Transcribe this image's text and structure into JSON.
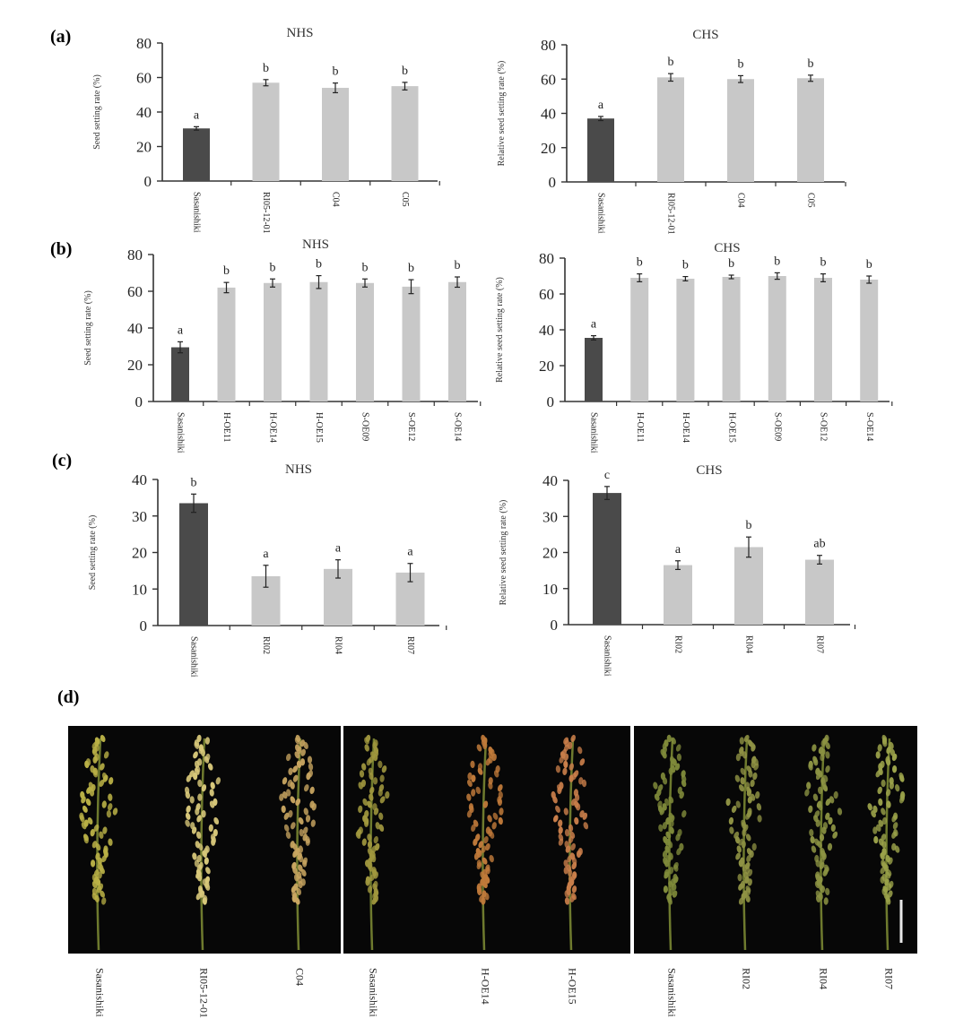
{
  "panel_labels": {
    "a": "(a)",
    "b": "(b)",
    "c": "(c)",
    "d": "(d)"
  },
  "colors": {
    "control_bar": "#4a4a4a",
    "transgenic_bar": "#c8c8c8",
    "axis": "#333333",
    "photo_bg": "#070707"
  },
  "chart_data": [
    {
      "id": "a-nhs",
      "panel": "a",
      "type": "bar",
      "title": "NHS",
      "ylabel": "Seed setting rate (%)",
      "ylim": [
        0,
        80
      ],
      "yticks": [
        0,
        20,
        40,
        60,
        80
      ],
      "categories": [
        "Sasanishiki",
        "RI05-12-01",
        "C04",
        "C05"
      ],
      "values": [
        30.5,
        57,
        54,
        55
      ],
      "errors": [
        1,
        1.8,
        2.8,
        2.2
      ],
      "letters": [
        "a",
        "b",
        "b",
        "b"
      ]
    },
    {
      "id": "a-chs",
      "panel": "a",
      "type": "bar",
      "title": "CHS",
      "ylabel": "Relative seed setting rate (%)",
      "ylim": [
        0,
        80
      ],
      "yticks": [
        0,
        20,
        40,
        60,
        80
      ],
      "categories": [
        "Sasanishiki",
        "RI05-12-01",
        "C04",
        "C05"
      ],
      "values": [
        37,
        61,
        60,
        60.5
      ],
      "errors": [
        1.2,
        2.2,
        2,
        1.8
      ],
      "letters": [
        "a",
        "b",
        "b",
        "b"
      ]
    },
    {
      "id": "b-nhs",
      "panel": "b",
      "type": "bar",
      "title": "NHS",
      "ylabel": "Seed setting rate (%)",
      "ylim": [
        0,
        80
      ],
      "yticks": [
        0,
        20,
        40,
        60,
        80
      ],
      "categories": [
        "Sasanishiki",
        "H-OE11",
        "H-OE14",
        "H-OE15",
        "S-OE09",
        "S-OE12",
        "S-OE14"
      ],
      "values": [
        29.5,
        62,
        64.5,
        65,
        64.5,
        62.5,
        65
      ],
      "errors": [
        3,
        2.8,
        2.2,
        3.5,
        2.2,
        3.8,
        2.8
      ],
      "letters": [
        "a",
        "b",
        "b",
        "b",
        "b",
        "b",
        "b"
      ]
    },
    {
      "id": "b-chs",
      "panel": "b",
      "type": "bar",
      "title": "CHS",
      "ylabel": "Relative seed setting rate (%)",
      "ylim": [
        0,
        80
      ],
      "yticks": [
        0,
        20,
        40,
        60,
        80
      ],
      "categories": [
        "Sasanishiki",
        "H-OE11",
        "H-OE14",
        "H-OE15",
        "S-OE09",
        "S-OE12",
        "S-OE14"
      ],
      "values": [
        35.5,
        69,
        68.5,
        69.5,
        70,
        69,
        68
      ],
      "errors": [
        1.2,
        2.2,
        1.2,
        1,
        1.8,
        2.2,
        2
      ],
      "letters": [
        "a",
        "b",
        "b",
        "b",
        "b",
        "b",
        "b"
      ]
    },
    {
      "id": "c-nhs",
      "panel": "c",
      "type": "bar",
      "title": "NHS",
      "ylabel": "Seed setting rate (%)",
      "ylim": [
        0,
        40
      ],
      "yticks": [
        0,
        10,
        20,
        30,
        40
      ],
      "categories": [
        "Sasanishiki",
        "RI02",
        "RI04",
        "RI07"
      ],
      "values": [
        33.5,
        13.5,
        15.5,
        14.5
      ],
      "errors": [
        2.5,
        3,
        2.5,
        2.5
      ],
      "letters": [
        "b",
        "a",
        "a",
        "a"
      ]
    },
    {
      "id": "c-chs",
      "panel": "c",
      "type": "bar",
      "title": "CHS",
      "ylabel": "Relative seed setting rate (%)",
      "ylim": [
        0,
        40
      ],
      "yticks": [
        0,
        10,
        20,
        30,
        40
      ],
      "categories": [
        "Sasanishiki",
        "RI02",
        "RI04",
        "RI07"
      ],
      "values": [
        36.5,
        16.5,
        21.5,
        18
      ],
      "errors": [
        1.8,
        1.2,
        2.8,
        1.2
      ],
      "letters": [
        "c",
        "a",
        "b",
        "ab"
      ]
    }
  ],
  "photos": [
    {
      "id": "photo-1",
      "labels": [
        "Sasanishiki",
        "RI05-12-01",
        "C04"
      ]
    },
    {
      "id": "photo-2",
      "labels": [
        "Sasanishiki",
        "H-OE14",
        "H-OE15"
      ]
    },
    {
      "id": "photo-3",
      "labels": [
        "Sasanishiki",
        "RI02",
        "RI04",
        "RI07"
      ],
      "has_scale_bar": true
    }
  ]
}
